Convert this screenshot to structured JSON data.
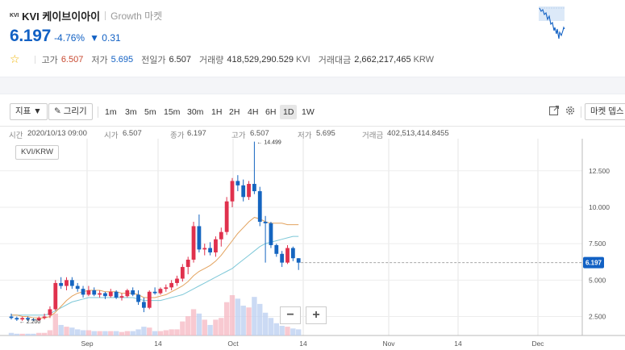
{
  "header": {
    "logo_text": "KVI",
    "coin_name": "KVI 케이브이아이",
    "market_name": "Growth 마켓",
    "price": "6.197",
    "change_pct": "-4.76%",
    "change_abs": "▼ 0.31",
    "stats": {
      "high_label": "고가",
      "high_value": "6.507",
      "low_label": "저가",
      "low_value": "5.695",
      "prev_label": "전일가",
      "prev_value": "6.507",
      "volume_label": "거래량",
      "volume_value": "418,529,290.529",
      "volume_unit": "KVI",
      "amount_label": "거래대금",
      "amount_value": "2,662,217,465",
      "amount_unit": "KRW"
    }
  },
  "toolbar": {
    "indicator_label": "지표 ▼",
    "draw_label": "✎ 그리기",
    "intervals": [
      "1m",
      "3m",
      "5m",
      "15m",
      "30m",
      "1H",
      "2H",
      "4H",
      "6H",
      "1D",
      "1W"
    ],
    "active_interval": "1D",
    "market_depth_label": "마켓 뎁스"
  },
  "ohlc": {
    "time_label": "시간",
    "time_value": "2020/10/13 09:00",
    "open_label": "시가",
    "open_value": "6.507",
    "close_label": "종가",
    "close_value": "6.197",
    "high_label": "고가",
    "high_value": "6.507",
    "low_label": "저가",
    "low_value": "5.695",
    "volume_label": "거래금",
    "volume_value": "402,513,414.8455"
  },
  "pair_label": "KVI/KRW",
  "colors": {
    "up": "#e0314d",
    "down": "#1565c0",
    "accent_blue": "#1261c4",
    "ma_orange": "#e3a35f",
    "ma_cyan": "#7ec8d8"
  },
  "chart_data": {
    "type": "candlestick",
    "pair": "KVI/KRW",
    "interval": "1D",
    "x_tick_labels": [
      "Sep",
      "14",
      "Oct",
      "14",
      "Nov",
      "14",
      "Dec"
    ],
    "y_tick_labels": [
      "2.500",
      "5.000",
      "7.500",
      "10.000",
      "12.500"
    ],
    "ylim": [
      1.2,
      14.7
    ],
    "current_price_label": "6.197",
    "max_label": "← 14.499",
    "min_label": "← 2.200",
    "grid": true,
    "candles": [
      {
        "o": 2.5,
        "h": 2.7,
        "l": 2.3,
        "c": 2.4
      },
      {
        "o": 2.4,
        "h": 2.5,
        "l": 2.2,
        "c": 2.3
      },
      {
        "o": 2.3,
        "h": 2.5,
        "l": 2.2,
        "c": 2.4
      },
      {
        "o": 2.4,
        "h": 2.5,
        "l": 2.2,
        "c": 2.3
      },
      {
        "o": 2.3,
        "h": 2.4,
        "l": 2.2,
        "c": 2.25
      },
      {
        "o": 2.25,
        "h": 2.5,
        "l": 2.2,
        "c": 2.4
      },
      {
        "o": 2.4,
        "h": 2.7,
        "l": 2.3,
        "c": 2.5
      },
      {
        "o": 2.6,
        "h": 3.2,
        "l": 2.4,
        "c": 3.0
      },
      {
        "o": 3.0,
        "h": 5.0,
        "l": 2.9,
        "c": 4.8
      },
      {
        "o": 4.8,
        "h": 5.2,
        "l": 4.4,
        "c": 4.6
      },
      {
        "o": 4.6,
        "h": 5.2,
        "l": 4.3,
        "c": 5.0
      },
      {
        "o": 5.0,
        "h": 5.2,
        "l": 4.4,
        "c": 4.6
      },
      {
        "o": 4.6,
        "h": 4.8,
        "l": 4.2,
        "c": 4.4
      },
      {
        "o": 4.4,
        "h": 4.6,
        "l": 3.8,
        "c": 4.0
      },
      {
        "o": 4.0,
        "h": 4.6,
        "l": 3.9,
        "c": 4.3
      },
      {
        "o": 4.3,
        "h": 4.5,
        "l": 3.9,
        "c": 4.0
      },
      {
        "o": 4.0,
        "h": 4.3,
        "l": 3.8,
        "c": 4.1
      },
      {
        "o": 4.1,
        "h": 4.2,
        "l": 3.7,
        "c": 3.9
      },
      {
        "o": 3.9,
        "h": 4.4,
        "l": 3.8,
        "c": 4.2
      },
      {
        "o": 4.2,
        "h": 4.3,
        "l": 3.7,
        "c": 3.8
      },
      {
        "o": 3.8,
        "h": 4.1,
        "l": 3.6,
        "c": 3.9
      },
      {
        "o": 3.9,
        "h": 4.4,
        "l": 3.8,
        "c": 4.3
      },
      {
        "o": 4.3,
        "h": 4.5,
        "l": 3.9,
        "c": 4.0
      },
      {
        "o": 4.0,
        "h": 4.3,
        "l": 3.3,
        "c": 3.5
      },
      {
        "o": 3.5,
        "h": 3.8,
        "l": 2.8,
        "c": 3.1
      },
      {
        "o": 3.1,
        "h": 4.3,
        "l": 3.0,
        "c": 4.2
      },
      {
        "o": 4.2,
        "h": 4.5,
        "l": 4.0,
        "c": 4.1
      },
      {
        "o": 4.1,
        "h": 4.5,
        "l": 4.0,
        "c": 4.4
      },
      {
        "o": 4.4,
        "h": 4.7,
        "l": 4.2,
        "c": 4.5
      },
      {
        "o": 4.5,
        "h": 5.0,
        "l": 4.3,
        "c": 4.8
      },
      {
        "o": 4.8,
        "h": 5.3,
        "l": 4.6,
        "c": 5.1
      },
      {
        "o": 5.1,
        "h": 6.1,
        "l": 4.9,
        "c": 5.9
      },
      {
        "o": 5.9,
        "h": 6.6,
        "l": 5.4,
        "c": 6.4
      },
      {
        "o": 6.4,
        "h": 9.0,
        "l": 6.2,
        "c": 8.7
      },
      {
        "o": 8.7,
        "h": 9.5,
        "l": 6.9,
        "c": 7.1
      },
      {
        "o": 7.1,
        "h": 7.5,
        "l": 6.7,
        "c": 7.2
      },
      {
        "o": 7.2,
        "h": 7.6,
        "l": 6.7,
        "c": 6.9
      },
      {
        "o": 6.9,
        "h": 8.0,
        "l": 6.6,
        "c": 7.8
      },
      {
        "o": 7.8,
        "h": 8.6,
        "l": 7.3,
        "c": 8.3
      },
      {
        "o": 8.3,
        "h": 10.7,
        "l": 8.1,
        "c": 10.4
      },
      {
        "o": 10.4,
        "h": 12.0,
        "l": 10.0,
        "c": 11.8
      },
      {
        "o": 11.8,
        "h": 12.2,
        "l": 11.1,
        "c": 11.5
      },
      {
        "o": 11.5,
        "h": 11.9,
        "l": 10.4,
        "c": 10.7
      },
      {
        "o": 10.7,
        "h": 11.8,
        "l": 10.5,
        "c": 11.6
      },
      {
        "o": 11.6,
        "h": 14.499,
        "l": 10.9,
        "c": 11.1
      },
      {
        "o": 11.1,
        "h": 11.4,
        "l": 8.7,
        "c": 9.0
      },
      {
        "o": 9.0,
        "h": 9.4,
        "l": 6.2,
        "c": 8.9
      },
      {
        "o": 8.9,
        "h": 9.0,
        "l": 7.2,
        "c": 7.4
      },
      {
        "o": 7.4,
        "h": 7.5,
        "l": 6.6,
        "c": 6.8
      },
      {
        "o": 6.8,
        "h": 7.0,
        "l": 5.9,
        "c": 6.2
      },
      {
        "o": 6.2,
        "h": 7.4,
        "l": 6.1,
        "c": 7.2
      },
      {
        "o": 7.2,
        "h": 7.3,
        "l": 6.3,
        "c": 6.5
      },
      {
        "o": 6.5,
        "h": 6.507,
        "l": 5.695,
        "c": 6.197
      }
    ],
    "ma_slow": [
      2.6,
      2.6,
      2.6,
      2.6,
      2.6,
      2.6,
      2.6,
      2.7,
      2.9,
      3.1,
      3.3,
      3.5,
      3.6,
      3.7,
      3.8,
      3.8,
      3.8,
      3.8,
      3.8,
      3.8,
      3.8,
      3.8,
      3.8,
      3.7,
      3.6,
      3.6,
      3.6,
      3.6,
      3.7,
      3.8,
      3.9,
      4.0,
      4.2,
      4.4,
      4.6,
      4.8,
      5.0,
      5.2,
      5.4,
      5.6,
      5.8,
      6.1,
      6.4,
      6.7,
      7.0,
      7.3,
      7.5,
      7.6,
      7.7,
      7.8,
      7.9,
      8.0,
      8.0
    ],
    "ma_fast": [
      2.6,
      2.6,
      2.5,
      2.5,
      2.4,
      2.4,
      2.4,
      2.5,
      2.8,
      3.2,
      3.6,
      3.9,
      4.1,
      4.2,
      4.3,
      4.3,
      4.3,
      4.2,
      4.2,
      4.2,
      4.1,
      4.1,
      4.1,
      4.0,
      3.8,
      3.8,
      3.8,
      3.9,
      4.0,
      4.2,
      4.4,
      4.6,
      4.9,
      5.3,
      5.6,
      5.8,
      6.0,
      6.3,
      6.7,
      7.2,
      7.7,
      8.2,
      8.6,
      9.0,
      9.3,
      9.2,
      9.0,
      8.9,
      8.9,
      8.9,
      8.8,
      8.8,
      8.8
    ],
    "volumes": [
      0.3,
      0.2,
      0.2,
      0.2,
      0.2,
      0.3,
      0.3,
      0.6,
      2.5,
      1.2,
      1.0,
      0.9,
      0.7,
      0.6,
      0.6,
      0.5,
      0.5,
      0.5,
      0.5,
      0.5,
      0.4,
      0.5,
      0.5,
      0.7,
      1.0,
      0.9,
      0.5,
      0.5,
      0.6,
      0.7,
      0.7,
      1.6,
      2.2,
      3.0,
      2.5,
      1.8,
      1.2,
      1.8,
      2.0,
      3.8,
      4.6,
      4.2,
      3.4,
      3.2,
      4.4,
      3.6,
      2.6,
      2.0,
      1.4,
      1.1,
      1.0,
      0.8,
      0.7
    ]
  }
}
